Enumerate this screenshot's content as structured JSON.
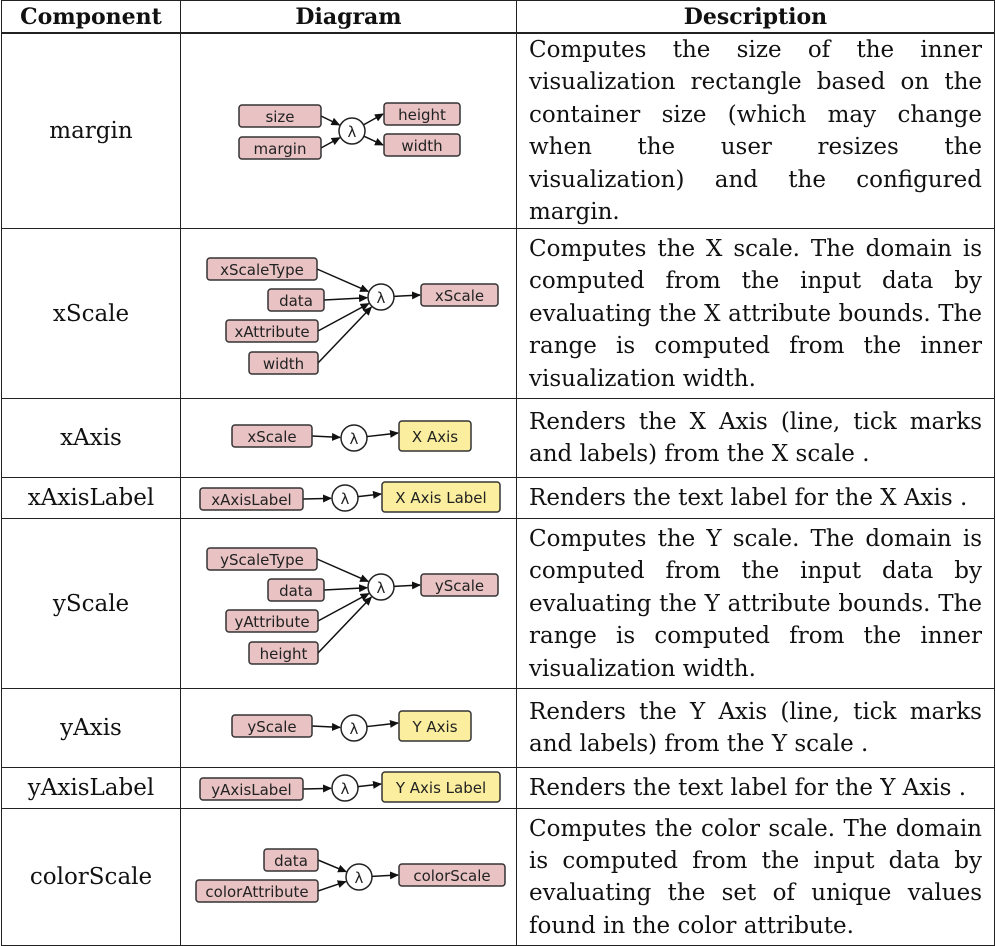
{
  "headers": {
    "component": "Component",
    "diagram": "Diagram",
    "description": "Description"
  },
  "colors": {
    "input_fill": "#e9c3c4",
    "output_fill": "#fbef9f",
    "border": "#222222"
  },
  "lambda_glyph": "λ",
  "rows": [
    {
      "name": "margin",
      "description": "Computes the size of the inner visualization rectangle based on the container size (which may change when the user resizes the visualization) and the configured margin.",
      "inputs": [
        "size",
        "margin"
      ],
      "outputs": [
        {
          "label": "height",
          "kind": "input"
        },
        {
          "label": "width",
          "kind": "input"
        }
      ]
    },
    {
      "name": "xScale",
      "description": "Computes the X scale. The domain is computed from the input data by evaluating the X attribute bounds. The range is computed from the inner visualization width.",
      "inputs": [
        "xScaleType",
        "data",
        "xAttribute",
        "width"
      ],
      "outputs": [
        {
          "label": "xScale",
          "kind": "input"
        }
      ]
    },
    {
      "name": "xAxis",
      "description": "Renders the X Axis (line, tick marks and labels) from the X scale .",
      "inputs": [
        "xScale"
      ],
      "outputs": [
        {
          "label": "X Axis",
          "kind": "output"
        }
      ]
    },
    {
      "name": "xAxisLabel",
      "description": "Renders the text label for the X Axis .",
      "inputs": [
        "xAxisLabel"
      ],
      "outputs": [
        {
          "label": "X Axis Label",
          "kind": "output"
        }
      ]
    },
    {
      "name": "yScale",
      "description": "Computes the Y scale. The domain is computed from the input data by evaluating the Y attribute bounds. The range is computed from the inner visualization width.",
      "inputs": [
        "yScaleType",
        "data",
        "yAttribute",
        "height"
      ],
      "outputs": [
        {
          "label": "yScale",
          "kind": "input"
        }
      ]
    },
    {
      "name": "yAxis",
      "description": "Renders the Y Axis (line, tick marks and labels) from the Y scale .",
      "inputs": [
        "yScale"
      ],
      "outputs": [
        {
          "label": "Y Axis",
          "kind": "output"
        }
      ]
    },
    {
      "name": "yAxisLabel",
      "description": "Renders the text label for the Y Axis .",
      "inputs": [
        "yAxisLabel"
      ],
      "outputs": [
        {
          "label": "Y Axis Label",
          "kind": "output"
        }
      ]
    },
    {
      "name": "colorScale",
      "description": "Computes the color scale. The domain is computed from the input data by evaluating the set of unique values found in the color attribute.",
      "inputs": [
        "data",
        "colorAttribute"
      ],
      "outputs": [
        {
          "label": "colorScale",
          "kind": "input"
        }
      ]
    }
  ]
}
